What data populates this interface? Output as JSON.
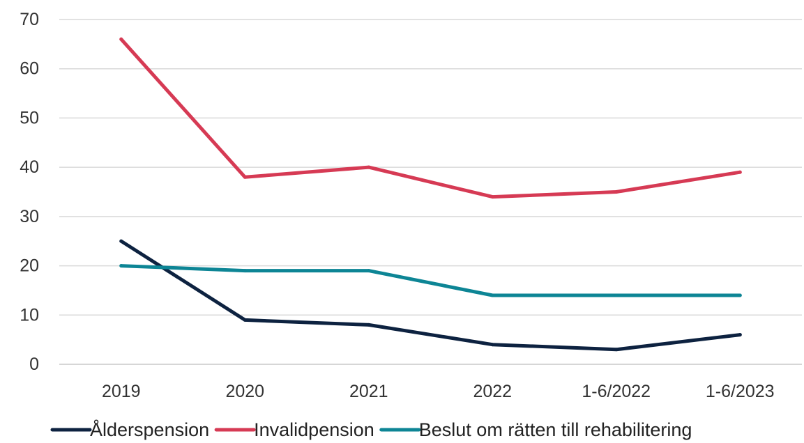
{
  "chart_data": {
    "type": "line",
    "categories": [
      "2019",
      "2020",
      "2021",
      "2022",
      "1-6/2022",
      "1-6/2023"
    ],
    "ylim": [
      0,
      70
    ],
    "yticks": [
      0,
      10,
      20,
      30,
      40,
      50,
      60,
      70
    ],
    "yticks_labels": [
      "0",
      "10",
      "20",
      "30",
      "40",
      "50",
      "60",
      "70"
    ],
    "grid": "horizontal",
    "legend_position": "bottom",
    "series": [
      {
        "name": "Ålderspension",
        "color": "#0d2240",
        "values": [
          25,
          9,
          8,
          4,
          3,
          6
        ]
      },
      {
        "name": "Invalidpension",
        "color": "#d63a54",
        "values": [
          66,
          38,
          40,
          34,
          35,
          39
        ]
      },
      {
        "name": "Beslut om rätten till rehabilitering",
        "color": "#0d8595",
        "values": [
          20,
          19,
          19,
          14,
          14,
          14
        ]
      }
    ]
  }
}
